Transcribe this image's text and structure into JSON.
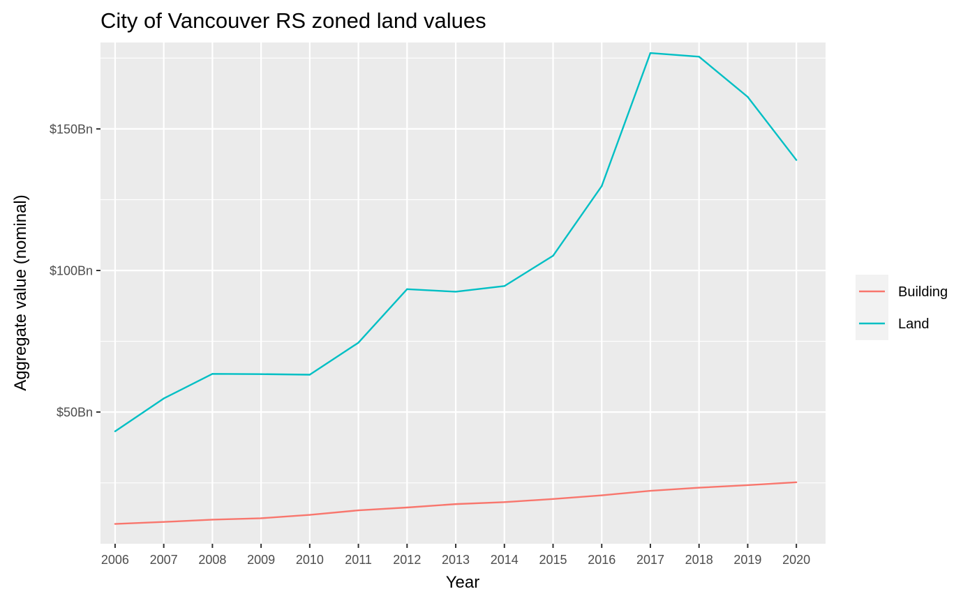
{
  "chart_data": {
    "type": "line",
    "title": "City of Vancouver RS zoned land values",
    "xlabel": "Year",
    "ylabel": "Aggregate value (nominal)",
    "x": [
      2006,
      2007,
      2008,
      2009,
      2010,
      2011,
      2012,
      2013,
      2014,
      2015,
      2016,
      2017,
      2018,
      2019,
      2020
    ],
    "xlim": [
      2005.7,
      2020.6
    ],
    "ylim": [
      3.5,
      180.5
    ],
    "y_ticks": [
      50,
      100,
      150
    ],
    "y_tick_labels": [
      "$50Bn",
      "$100Bn",
      "$150Bn"
    ],
    "y_minor_ticks": [
      25,
      75,
      125,
      175
    ],
    "y_unit": "$Bn",
    "grid": true,
    "legend_position": "right",
    "series": [
      {
        "name": "Building",
        "color": "#F8766D",
        "values": [
          10.5,
          11.2,
          12.0,
          12.5,
          13.7,
          15.3,
          16.3,
          17.5,
          18.2,
          19.3,
          20.6,
          22.2,
          23.3,
          24.2,
          25.2
        ]
      },
      {
        "name": "Land",
        "color": "#00BFC4",
        "values": [
          43.2,
          54.8,
          63.5,
          63.4,
          63.2,
          74.5,
          93.4,
          92.5,
          94.5,
          105.2,
          129.8,
          176.8,
          175.5,
          161.3,
          139.0
        ]
      }
    ]
  }
}
